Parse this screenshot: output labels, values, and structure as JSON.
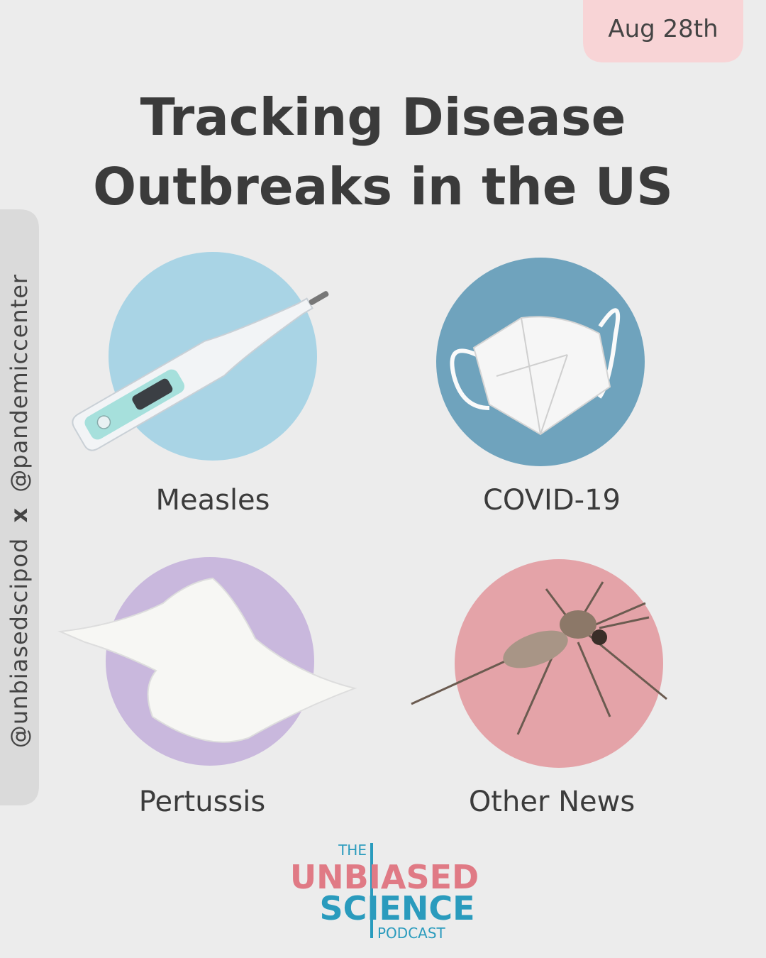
{
  "date": "Aug 28th",
  "title": {
    "lines": [
      "Tracking Disease",
      "Outbreaks in the US"
    ]
  },
  "handles": {
    "first": "@unbiasedscipod",
    "separator": "x",
    "second": "@pandemiccenter"
  },
  "topics": [
    "Measles",
    "COVID-19",
    "Pertussis",
    "Other News"
  ],
  "logo": {
    "the": "THE",
    "unbiased": "UNBIASED",
    "science": "SCIENCE",
    "podcast": "PODCAST"
  }
}
